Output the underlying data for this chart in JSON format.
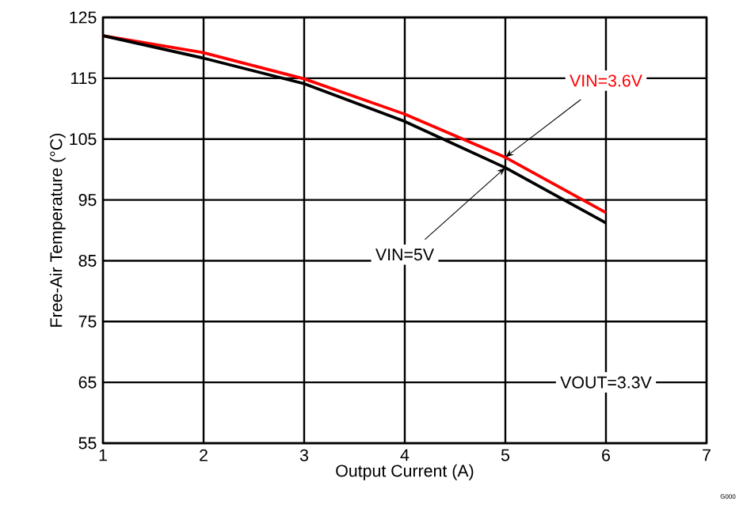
{
  "chart_data": {
    "type": "line",
    "xlabel": "Output Current (A)",
    "ylabel": "Free-Air Temperature (°C)",
    "x": [
      1,
      2,
      3,
      4,
      5,
      6
    ],
    "series": [
      {
        "name": "VIN=3.6V",
        "color": "#ff0000",
        "values": [
          122.0,
          119.2,
          114.9,
          109.1,
          102.0,
          92.9
        ]
      },
      {
        "name": "VIN=5V",
        "color": "#000000",
        "values": [
          122.0,
          118.3,
          114.1,
          107.9,
          100.3,
          91.2
        ]
      }
    ],
    "xlim": [
      1,
      7
    ],
    "xticks": [
      1,
      2,
      3,
      4,
      5,
      6,
      7
    ],
    "ylim": [
      55,
      125
    ],
    "yticks": [
      55,
      65,
      75,
      85,
      95,
      105,
      115,
      125
    ],
    "grid": true,
    "legend": false,
    "marker": "none",
    "line_style": "solid",
    "annotations": [
      "VOUT=3.3V",
      "G000"
    ]
  }
}
